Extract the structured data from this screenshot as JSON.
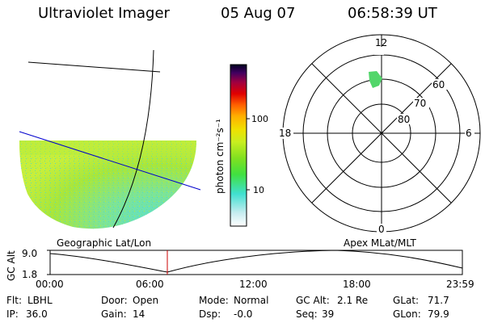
{
  "header": {
    "title": "Ultraviolet Imager",
    "date": "05 Aug 07",
    "time": "06:58:39 UT"
  },
  "colorbar": {
    "label": "photon cm⁻²s⁻¹",
    "ticks": [
      "100",
      "10"
    ]
  },
  "polar_plot": {
    "mlt_labels": [
      "12",
      "18",
      "6",
      "0"
    ],
    "lat_labels": [
      "60",
      "70",
      "80"
    ]
  },
  "panels": {
    "left_caption": "Geographic Lat/Lon",
    "right_caption": "Apex MLat/MLT"
  },
  "timeline": {
    "ylabel": "GC Alt",
    "y_ticks": [
      "9.0",
      "1.8"
    ],
    "x_ticks": [
      "00:00",
      "06:00",
      "12:00",
      "18:00",
      "23:59"
    ],
    "marker_time": "06:58"
  },
  "status": {
    "filter": {
      "label": "Flt:",
      "value": "LBHL"
    },
    "ip": {
      "label": "IP:",
      "value": "36.0"
    },
    "door": {
      "label": "Door:",
      "value": "Open"
    },
    "gain": {
      "label": "Gain:",
      "value": "14"
    },
    "mode": {
      "label": "Mode:",
      "value": "Normal"
    },
    "dsp": {
      "label": "Dsp:",
      "value": "-0.0"
    },
    "gc_alt": {
      "label": "GC Alt:",
      "value": "2.1 Re"
    },
    "seq": {
      "label": "Seq:",
      "value": "39"
    },
    "glat": {
      "label": "GLat:",
      "value": "71.7"
    },
    "glon": {
      "label": "GLon:",
      "value": "79.9"
    }
  },
  "colors": {
    "image_green": "#9be43a",
    "image_cyan": "#5fe0c8",
    "image_lime": "#c7ee3c",
    "marker": "#cc0000",
    "lat_line": "#0000cc"
  }
}
